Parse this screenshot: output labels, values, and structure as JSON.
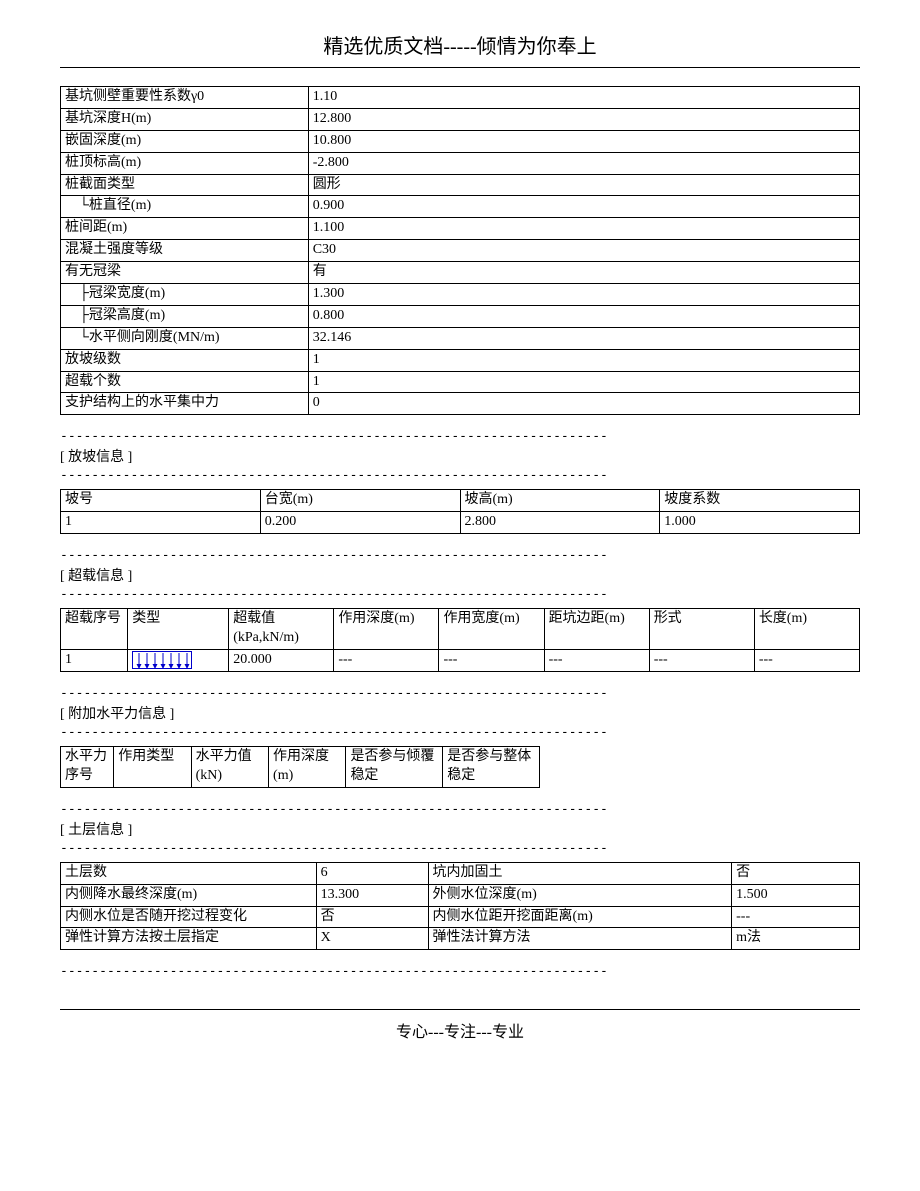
{
  "header": "精选优质文档-----倾情为你奉上",
  "footer": "专心---专注---专业",
  "dashes": "----------------------------------------------------------------------",
  "params": {
    "rows": [
      {
        "label": "基坑侧壁重要性系数γ0",
        "value": "1.10"
      },
      {
        "label": "基坑深度H(m)",
        "value": "12.800"
      },
      {
        "label": "嵌固深度(m)",
        "value": "10.800"
      },
      {
        "label": "桩顶标高(m)",
        "value": "-2.800"
      },
      {
        "label": "桩截面类型",
        "value": "圆形"
      },
      {
        "label": "　└桩直径(m)",
        "value": "0.900"
      },
      {
        "label": "桩间距(m)",
        "value": "1.100"
      },
      {
        "label": "混凝土强度等级",
        "value": "C30"
      },
      {
        "label": "有无冠梁",
        "value": "有"
      },
      {
        "label": "　├冠梁宽度(m)",
        "value": "1.300"
      },
      {
        "label": "　├冠梁高度(m)",
        "value": "0.800"
      },
      {
        "label": "　└水平侧向刚度(MN/m)",
        "value": "32.146"
      },
      {
        "label": "放坡级数",
        "value": "1"
      },
      {
        "label": "超载个数",
        "value": "1"
      },
      {
        "label": "支护结构上的水平集中力",
        "value": "0"
      }
    ]
  },
  "slope": {
    "title": "[ 放坡信息 ]",
    "headers": [
      "坡号",
      "台宽(m)",
      "坡高(m)",
      "坡度系数"
    ],
    "rows": [
      [
        "1",
        "0.200",
        "2.800",
        "1.000"
      ]
    ]
  },
  "overload": {
    "title": "[ 超载信息 ]",
    "headers": [
      "超载序号",
      "类型",
      "超载值(kPa,kN/m)",
      "作用深度(m)",
      "作用宽度(m)",
      "距坑边距(m)",
      "形式",
      "长度(m)"
    ],
    "rows": [
      [
        "1",
        "__ARROWS__",
        "20.000",
        "---",
        "---",
        "---",
        "---",
        "---"
      ]
    ]
  },
  "hforce": {
    "title": "[ 附加水平力信息 ]",
    "headers": [
      "水平力序号",
      "作用类型",
      "水平力值(kN)",
      "作用深度(m)",
      "是否参与倾覆稳定",
      "是否参与整体稳定"
    ]
  },
  "soil": {
    "title": "[ 土层信息 ]",
    "rows": [
      [
        "土层数",
        "6",
        "坑内加固土",
        "否"
      ],
      [
        "内侧降水最终深度(m)",
        "13.300",
        "外侧水位深度(m)",
        "1.500"
      ],
      [
        "内侧水位是否随开挖过程变化",
        "否",
        "内侧水位距开挖面距离(m)",
        "---"
      ],
      [
        "弹性计算方法按土层指定",
        "X",
        "弹性法计算方法",
        "m法"
      ]
    ]
  }
}
